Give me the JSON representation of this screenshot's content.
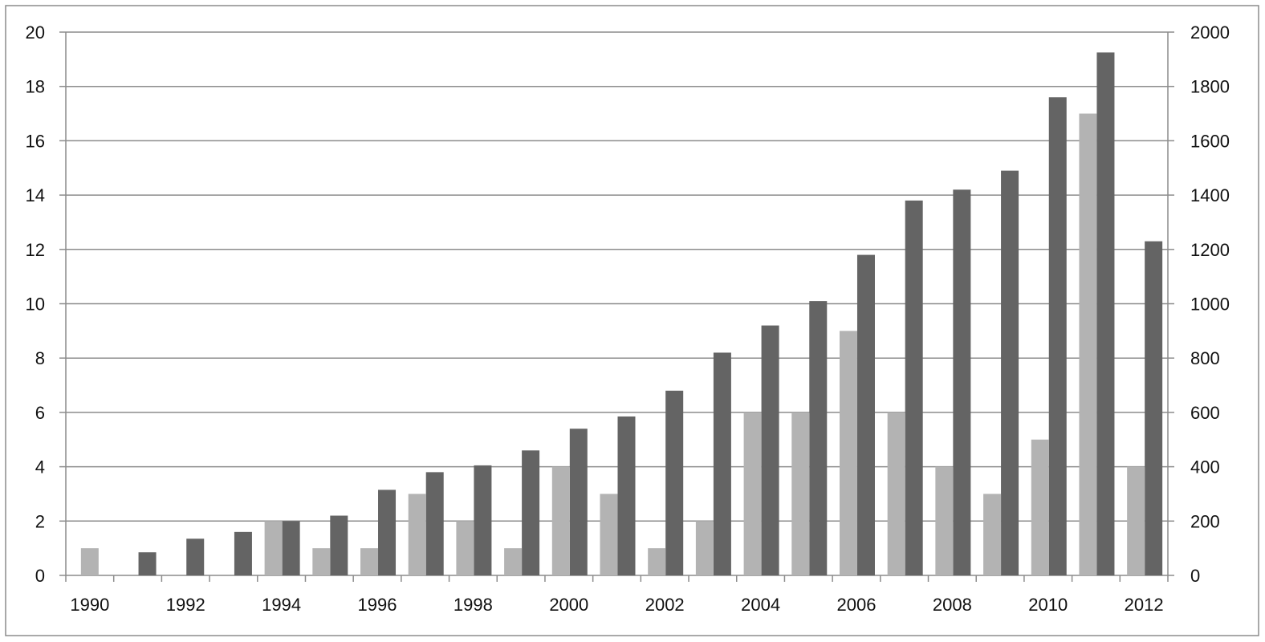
{
  "colors": {
    "series_left": "#646464",
    "series_right": "#b3b3b3",
    "grid": "#8c8c8c",
    "axis": "#8c8c8c",
    "frame": "#8c8c8c",
    "background": "#ffffff"
  },
  "chart_data": {
    "type": "bar",
    "title": "",
    "xlabel": "",
    "ylabel": "",
    "y2label": "",
    "grid": true,
    "legend": "none",
    "categories": [
      "1990",
      "1991",
      "1992",
      "1993",
      "1994",
      "1995",
      "1996",
      "1997",
      "1998",
      "1999",
      "2000",
      "2001",
      "2002",
      "2003",
      "2004",
      "2005",
      "2006",
      "2007",
      "2008",
      "2009",
      "2010",
      "2011",
      "2012"
    ],
    "x_tick_labels": [
      "1990",
      "",
      "1992",
      "",
      "1994",
      "",
      "1996",
      "",
      "1998",
      "",
      "2000",
      "",
      "2002",
      "",
      "2004",
      "",
      "2006",
      "",
      "2008",
      "",
      "2010",
      "",
      "2012"
    ],
    "ylim": [
      0,
      20
    ],
    "y_ticks": [
      0,
      2,
      4,
      6,
      8,
      10,
      12,
      14,
      16,
      18,
      20
    ],
    "y2lim": [
      0,
      2000
    ],
    "y2_ticks": [
      0,
      200,
      400,
      600,
      800,
      1000,
      1200,
      1400,
      1600,
      1800,
      2000
    ],
    "series": [
      {
        "axis": "left",
        "color": "#646464",
        "values": [
          0,
          0.85,
          1.35,
          1.6,
          2.0,
          2.2,
          3.15,
          3.8,
          4.05,
          4.6,
          5.4,
          5.85,
          6.8,
          8.2,
          9.2,
          10.1,
          11.8,
          13.8,
          14.2,
          14.9,
          17.6,
          19.25,
          12.3
        ]
      },
      {
        "axis": "right",
        "color": "#b3b3b3",
        "values": [
          100,
          0,
          0,
          0,
          200,
          100,
          100,
          300,
          200,
          100,
          400,
          300,
          100,
          200,
          600,
          600,
          900,
          600,
          400,
          300,
          500,
          1700,
          400
        ]
      }
    ]
  }
}
